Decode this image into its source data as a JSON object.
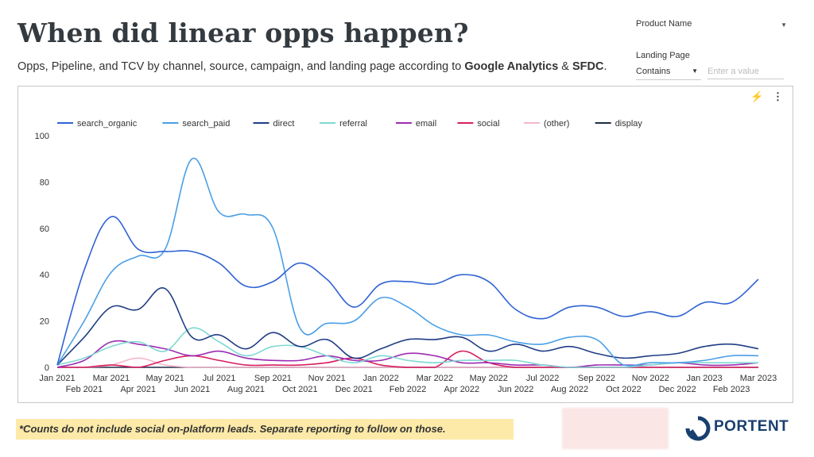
{
  "header": {
    "title": "When did linear opps happen?",
    "subtitle_prefix": "Opps, Pipeline, and TCV by channel, source, campaign, and landing page according to ",
    "subtitle_ga": "Google Analytics",
    "subtitle_amp": " & ",
    "subtitle_sfdc": "SFDC",
    "subtitle_end": "."
  },
  "controls": {
    "product_label": "Product Name",
    "landing_label": "Landing Page",
    "operator": "Contains",
    "value_placeholder": "Enter a value"
  },
  "note": "*Counts do not include social on-platform leads. Separate reporting to follow on those.",
  "logo": {
    "text": "PORTENT"
  },
  "colors": {
    "brand": "#183f6e",
    "note_bg": "#fdeaa8"
  },
  "chart_data": {
    "type": "line",
    "ylim": [
      0,
      100
    ],
    "yticks": [
      0,
      20,
      40,
      60,
      80,
      100
    ],
    "categories": [
      "Jan 2021",
      "Feb 2021",
      "Mar 2021",
      "Apr 2021",
      "May 2021",
      "Jun 2021",
      "Jul 2021",
      "Aug 2021",
      "Sep 2021",
      "Oct 2021",
      "Nov 2021",
      "Dec 2021",
      "Jan 2022",
      "Feb 2022",
      "Mar 2022",
      "Apr 2022",
      "May 2022",
      "Jun 2022",
      "Jul 2022",
      "Aug 2022",
      "Sep 2022",
      "Oct 2022",
      "Nov 2022",
      "Dec 2022",
      "Jan 2023",
      "Feb 2023",
      "Mar 2023"
    ],
    "legend_position": "top-left",
    "series": [
      {
        "name": "search_organic",
        "color": "#2f62d4",
        "values": [
          1,
          42,
          65,
          51,
          50,
          50,
          45,
          35,
          37,
          45,
          38,
          26,
          36,
          37,
          36,
          40,
          37,
          25,
          21,
          26,
          26,
          22,
          24,
          22,
          28,
          28,
          38
        ]
      },
      {
        "name": "search_paid",
        "color": "#4b9fe6",
        "values": [
          1,
          20,
          41,
          48,
          51,
          90,
          67,
          66,
          60,
          17,
          19,
          20,
          30,
          26,
          18,
          14,
          14,
          11,
          10,
          13,
          12,
          1,
          2,
          2,
          3,
          5,
          5
        ]
      },
      {
        "name": "direct",
        "color": "#1f3d84",
        "values": [
          1,
          13,
          26,
          25,
          34,
          13,
          14,
          8,
          15,
          9,
          12,
          4,
          8,
          12,
          12,
          13,
          7,
          10,
          7,
          9,
          6,
          4,
          5,
          6,
          9,
          10,
          8
        ]
      },
      {
        "name": "referral",
        "color": "#7fd8d2",
        "values": [
          1,
          4,
          9,
          11,
          7,
          17,
          11,
          5,
          9,
          9,
          5,
          2,
          5,
          3,
          2,
          3,
          3,
          3,
          1,
          0,
          0,
          0,
          1,
          2,
          2,
          2,
          2
        ]
      },
      {
        "name": "email",
        "color": "#9c2bb2",
        "values": [
          0,
          3,
          11,
          10,
          8,
          5,
          7,
          4,
          3,
          3,
          5,
          3,
          3,
          6,
          5,
          2,
          2,
          1,
          1,
          0,
          1,
          1,
          1,
          2,
          1,
          1,
          2
        ]
      },
      {
        "name": "social",
        "color": "#d61f5f",
        "values": [
          0,
          0,
          1,
          0,
          3,
          5,
          3,
          1,
          1,
          1,
          2,
          4,
          1,
          0,
          0,
          7,
          2,
          0,
          0,
          0,
          0,
          0,
          0,
          0,
          0,
          0,
          0
        ]
      },
      {
        "name": "(other)",
        "color": "#f5b6cc",
        "values": [
          0,
          0,
          1,
          4,
          1,
          0,
          0,
          0,
          0,
          0,
          0,
          0,
          0,
          0,
          0,
          0,
          0,
          0,
          0,
          0,
          0,
          0,
          0,
          0,
          0,
          0,
          0
        ]
      },
      {
        "name": "display",
        "color": "#1d2d44",
        "values": [
          0,
          0,
          0,
          0,
          0,
          0,
          0,
          0,
          0,
          0,
          0,
          0,
          0,
          0,
          0,
          0,
          0,
          0,
          0,
          0,
          0,
          0,
          0,
          0,
          0,
          0,
          0
        ]
      }
    ]
  }
}
